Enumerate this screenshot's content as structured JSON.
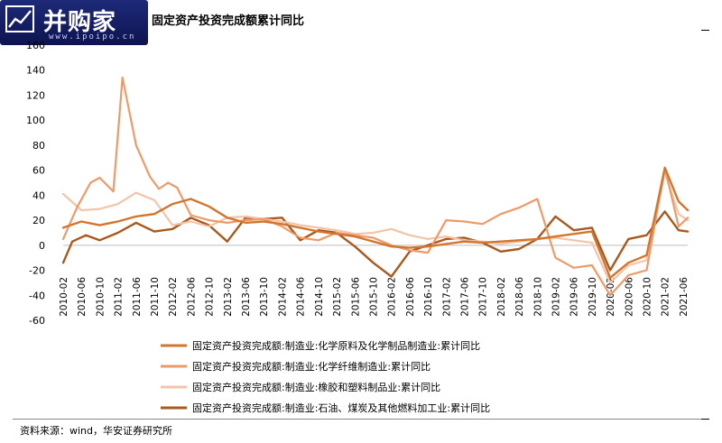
{
  "logo": {
    "name": "并购家",
    "url": "www.ipoipo.cn"
  },
  "title": "固定资产投资完成额累计同比",
  "source": "资料来源：wind，华安证券研究所",
  "chart_data": {
    "type": "line",
    "ylim": [
      -60,
      160
    ],
    "yticks": [
      -60,
      -40,
      -20,
      0,
      20,
      40,
      60,
      80,
      100,
      120,
      140,
      160
    ],
    "x_tick_labels": [
      "2010-02",
      "2010-06",
      "2010-10",
      "2011-02",
      "2011-06",
      "2011-10",
      "2012-02",
      "2012-06",
      "2012-10",
      "2013-02",
      "2013-06",
      "2013-10",
      "2014-02",
      "2014-06",
      "2014-10",
      "2015-02",
      "2015-06",
      "2015-10",
      "2016-02",
      "2016-06",
      "2016-10",
      "2017-02",
      "2017-06",
      "2017-10",
      "2018-02",
      "2018-06",
      "2018-10",
      "2019-02",
      "2019-06",
      "2019-10",
      "2020-02",
      "2020-06",
      "2020-10",
      "2021-02",
      "2021-06"
    ],
    "x_start": "2010-02",
    "x_end": "2021-07",
    "grid": false,
    "legend_position": "bottom",
    "series": [
      {
        "name": "固定资产投资完成额:制造业:化学原料及化学制品制造业:累计同比",
        "color": "#d2762f",
        "width": 2.4,
        "points": [
          [
            "2010-02",
            14
          ],
          [
            "2010-06",
            19
          ],
          [
            "2010-10",
            16
          ],
          [
            "2011-02",
            19
          ],
          [
            "2011-06",
            23
          ],
          [
            "2011-10",
            25
          ],
          [
            "2012-02",
            33
          ],
          [
            "2012-06",
            37
          ],
          [
            "2012-10",
            31
          ],
          [
            "2013-02",
            22
          ],
          [
            "2013-06",
            18
          ],
          [
            "2013-10",
            19
          ],
          [
            "2014-02",
            17
          ],
          [
            "2014-06",
            14
          ],
          [
            "2014-10",
            11
          ],
          [
            "2015-02",
            9
          ],
          [
            "2015-06",
            7
          ],
          [
            "2015-10",
            3
          ],
          [
            "2016-02",
            -1
          ],
          [
            "2016-06",
            -2
          ],
          [
            "2016-10",
            -1
          ],
          [
            "2017-02",
            1
          ],
          [
            "2017-06",
            3
          ],
          [
            "2017-10",
            2
          ],
          [
            "2018-02",
            3
          ],
          [
            "2018-06",
            4
          ],
          [
            "2018-10",
            5
          ],
          [
            "2019-02",
            7
          ],
          [
            "2019-06",
            9
          ],
          [
            "2019-10",
            11
          ],
          [
            "2020-02",
            -26
          ],
          [
            "2020-06",
            -14
          ],
          [
            "2020-10",
            -8
          ],
          [
            "2021-02",
            62
          ],
          [
            "2021-05",
            35
          ],
          [
            "2021-07",
            28
          ]
        ]
      },
      {
        "name": "固定资产投资完成额:制造业:化学纤维制造业:累计同比",
        "color": "#ee9a68",
        "width": 2.2,
        "points": [
          [
            "2010-02",
            5
          ],
          [
            "2010-05",
            30
          ],
          [
            "2010-08",
            50
          ],
          [
            "2010-10",
            54
          ],
          [
            "2011-01",
            43
          ],
          [
            "2011-03",
            134
          ],
          [
            "2011-06",
            80
          ],
          [
            "2011-09",
            55
          ],
          [
            "2011-11",
            45
          ],
          [
            "2012-01",
            50
          ],
          [
            "2012-03",
            46
          ],
          [
            "2012-06",
            24
          ],
          [
            "2012-10",
            20
          ],
          [
            "2013-02",
            18
          ],
          [
            "2013-06",
            20
          ],
          [
            "2013-10",
            21
          ],
          [
            "2014-02",
            15
          ],
          [
            "2014-06",
            6
          ],
          [
            "2014-10",
            4
          ],
          [
            "2015-02",
            10
          ],
          [
            "2015-06",
            8
          ],
          [
            "2015-10",
            6
          ],
          [
            "2016-02",
            0
          ],
          [
            "2016-06",
            -4
          ],
          [
            "2016-10",
            -6
          ],
          [
            "2017-02",
            20
          ],
          [
            "2017-06",
            19
          ],
          [
            "2017-10",
            17
          ],
          [
            "2018-02",
            25
          ],
          [
            "2018-06",
            30
          ],
          [
            "2018-10",
            37
          ],
          [
            "2019-02",
            -10
          ],
          [
            "2019-06",
            -18
          ],
          [
            "2019-10",
            -16
          ],
          [
            "2020-02",
            -40
          ],
          [
            "2020-06",
            -24
          ],
          [
            "2020-10",
            -20
          ],
          [
            "2021-02",
            62
          ],
          [
            "2021-05",
            15
          ],
          [
            "2021-07",
            22
          ]
        ]
      },
      {
        "name": "固定资产投资完成额:制造业:橡胶和塑料制品业:累计同比",
        "color": "#f4c4a8",
        "width": 2.2,
        "points": [
          [
            "2010-02",
            41
          ],
          [
            "2010-06",
            28
          ],
          [
            "2010-10",
            29
          ],
          [
            "2011-02",
            33
          ],
          [
            "2011-06",
            42
          ],
          [
            "2011-10",
            36
          ],
          [
            "2012-02",
            16
          ],
          [
            "2012-06",
            19
          ],
          [
            "2012-10",
            15
          ],
          [
            "2013-02",
            22
          ],
          [
            "2013-06",
            23
          ],
          [
            "2013-10",
            21
          ],
          [
            "2014-02",
            19
          ],
          [
            "2014-06",
            16
          ],
          [
            "2014-10",
            14
          ],
          [
            "2015-02",
            12
          ],
          [
            "2015-06",
            9
          ],
          [
            "2015-10",
            10
          ],
          [
            "2016-02",
            13
          ],
          [
            "2016-06",
            8
          ],
          [
            "2016-10",
            5
          ],
          [
            "2017-02",
            7
          ],
          [
            "2017-06",
            4
          ],
          [
            "2017-10",
            3
          ],
          [
            "2018-02",
            1
          ],
          [
            "2018-06",
            3
          ],
          [
            "2018-10",
            5
          ],
          [
            "2019-02",
            6
          ],
          [
            "2019-06",
            4
          ],
          [
            "2019-10",
            2
          ],
          [
            "2020-02",
            -30
          ],
          [
            "2020-06",
            -16
          ],
          [
            "2020-10",
            -12
          ],
          [
            "2021-02",
            58
          ],
          [
            "2021-05",
            25
          ],
          [
            "2021-07",
            20
          ]
        ]
      },
      {
        "name": "固定资产投资完成额:制造业:石油、煤炭及其他燃料加工业:累计同比",
        "color": "#a9591e",
        "width": 2.4,
        "points": [
          [
            "2010-02",
            -14
          ],
          [
            "2010-04",
            3
          ],
          [
            "2010-07",
            8
          ],
          [
            "2010-10",
            4
          ],
          [
            "2011-02",
            10
          ],
          [
            "2011-06",
            18
          ],
          [
            "2011-10",
            11
          ],
          [
            "2012-02",
            13
          ],
          [
            "2012-06",
            22
          ],
          [
            "2012-10",
            16
          ],
          [
            "2013-02",
            3
          ],
          [
            "2013-06",
            22
          ],
          [
            "2013-10",
            21
          ],
          [
            "2014-02",
            22
          ],
          [
            "2014-06",
            4
          ],
          [
            "2014-10",
            12
          ],
          [
            "2015-02",
            10
          ],
          [
            "2015-06",
            -1
          ],
          [
            "2015-10",
            -14
          ],
          [
            "2016-02",
            -25
          ],
          [
            "2016-06",
            -5
          ],
          [
            "2016-10",
            0
          ],
          [
            "2017-02",
            5
          ],
          [
            "2017-06",
            6
          ],
          [
            "2017-10",
            2
          ],
          [
            "2018-02",
            -5
          ],
          [
            "2018-06",
            -3
          ],
          [
            "2018-10",
            5
          ],
          [
            "2019-02",
            23
          ],
          [
            "2019-06",
            12
          ],
          [
            "2019-10",
            14
          ],
          [
            "2020-02",
            -20
          ],
          [
            "2020-06",
            5
          ],
          [
            "2020-10",
            8
          ],
          [
            "2021-02",
            27
          ],
          [
            "2021-05",
            12
          ],
          [
            "2021-07",
            11
          ]
        ]
      }
    ]
  }
}
